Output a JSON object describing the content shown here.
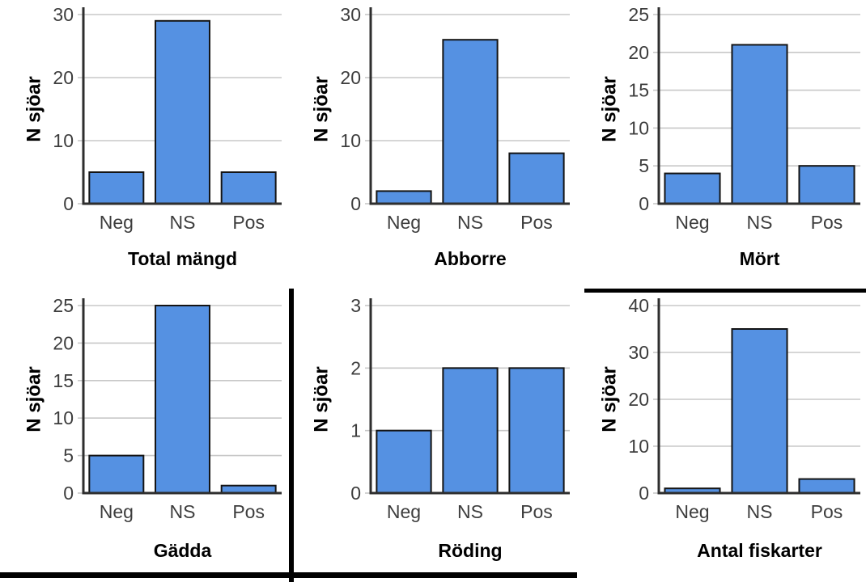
{
  "figure": {
    "description_labels": {
      "y_axis_title": "N sjöar",
      "categories": [
        "Neg",
        "NS",
        "Pos"
      ]
    }
  },
  "chart_data": [
    {
      "type": "bar",
      "title": "Total mängd",
      "ylabel": "N sjöar",
      "xlabel": "",
      "categories": [
        "Neg",
        "NS",
        "Pos"
      ],
      "values": [
        5,
        29,
        5
      ],
      "yticks": [
        0,
        10,
        20,
        30
      ],
      "ylim": [
        0,
        30
      ],
      "grid": true,
      "legend": "none"
    },
    {
      "type": "bar",
      "title": "Abborre",
      "ylabel": "N sjöar",
      "xlabel": "",
      "categories": [
        "Neg",
        "NS",
        "Pos"
      ],
      "values": [
        2,
        26,
        8
      ],
      "yticks": [
        0,
        10,
        20,
        30
      ],
      "ylim": [
        0,
        30
      ],
      "grid": true,
      "legend": "none"
    },
    {
      "type": "bar",
      "title": "Mört",
      "ylabel": "N sjöar",
      "xlabel": "",
      "categories": [
        "Neg",
        "NS",
        "Pos"
      ],
      "values": [
        4,
        21,
        5
      ],
      "yticks": [
        0,
        5,
        10,
        15,
        20,
        25
      ],
      "ylim": [
        0,
        25
      ],
      "grid": true,
      "legend": "none"
    },
    {
      "type": "bar",
      "title": "Gädda",
      "ylabel": "N sjöar",
      "xlabel": "",
      "categories": [
        "Neg",
        "NS",
        "Pos"
      ],
      "values": [
        5,
        25,
        1
      ],
      "yticks": [
        0,
        5,
        10,
        15,
        20,
        25
      ],
      "ylim": [
        0,
        25
      ],
      "grid": true,
      "legend": "none"
    },
    {
      "type": "bar",
      "title": "Röding",
      "ylabel": "N sjöar",
      "xlabel": "",
      "categories": [
        "Neg",
        "NS",
        "Pos"
      ],
      "values": [
        1,
        2,
        2
      ],
      "yticks": [
        0,
        1,
        2,
        3
      ],
      "ylim": [
        0,
        3
      ],
      "grid": true,
      "legend": "none"
    },
    {
      "type": "bar",
      "title": "Antal fiskarter",
      "ylabel": "N sjöar",
      "xlabel": "",
      "categories": [
        "Neg",
        "NS",
        "Pos"
      ],
      "values": [
        1,
        35,
        3
      ],
      "yticks": [
        0,
        10,
        20,
        30,
        40
      ],
      "ylim": [
        0,
        40
      ],
      "grid": true,
      "legend": "none"
    }
  ],
  "colors": {
    "bar_fill": "#5591E2",
    "bar_stroke": "#141414",
    "gridline": "#C8C8C8",
    "axis": "#2E2E2E",
    "tick_label": "#3D3D3D",
    "category_label": "#3D3D3D",
    "title": "#000000",
    "ylabel": "#000000",
    "divider": "#000000",
    "background": "#FFFFFF"
  }
}
